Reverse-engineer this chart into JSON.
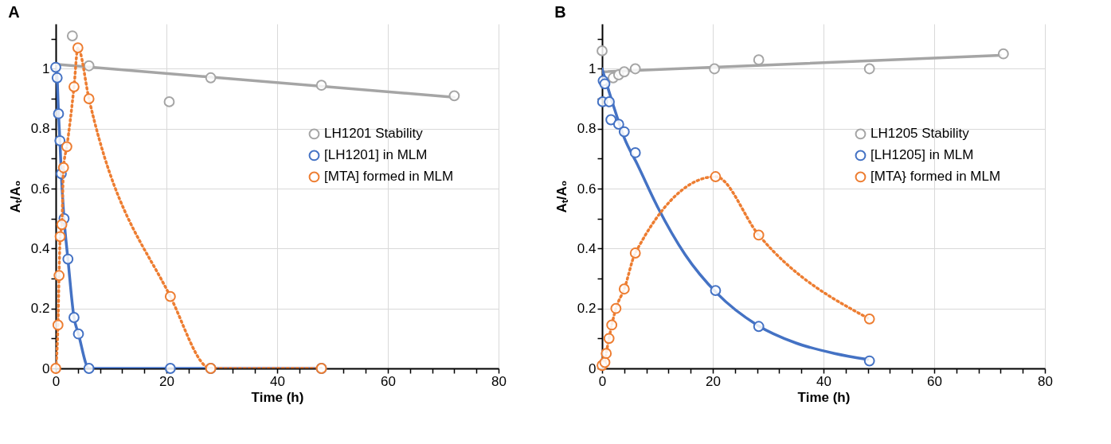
{
  "chart_data": [
    {
      "type": "line",
      "title": "A",
      "xlabel": "Time (h)",
      "ylabel": "Aₜ/A₀",
      "xlim": [
        0,
        80
      ],
      "ylim": [
        0,
        1.15
      ],
      "xticks": [
        0,
        {
          "value": 4,
          "label": null
        },
        {
          "value": 8,
          "label": null
        },
        {
          "value": 12,
          "label": null
        },
        {
          "value": 16,
          "label": null
        },
        20,
        {
          "value": 24,
          "label": null
        },
        {
          "value": 28,
          "label": null
        },
        {
          "value": 32,
          "label": null
        },
        {
          "value": 36,
          "label": null
        },
        40,
        {
          "value": 44,
          "label": null
        },
        {
          "value": 48,
          "label": null
        },
        {
          "value": 52,
          "label": null
        },
        {
          "value": 56,
          "label": null
        },
        60,
        {
          "value": 64,
          "label": null
        },
        {
          "value": 68,
          "label": null
        },
        {
          "value": 72,
          "label": null
        },
        {
          "value": 76,
          "label": null
        },
        80
      ],
      "yticks": [
        0,
        {
          "value": 0.1,
          "label": null
        },
        0.2,
        {
          "value": 0.3,
          "label": null
        },
        0.4,
        {
          "value": 0.5,
          "label": null
        },
        0.6,
        {
          "value": 0.7,
          "label": null
        },
        0.8,
        {
          "value": 0.9,
          "label": null
        },
        1,
        {
          "value": 1.1,
          "label": null
        }
      ],
      "grid": true,
      "legend": "right",
      "series": [
        {
          "type": "line",
          "color": "#a5a5a5",
          "line_style": "solid",
          "marker": "none",
          "x": [
            0,
            72
          ],
          "values": [
            1.015,
            0.905
          ]
        },
        {
          "type": "scatter",
          "name": "LH1201 Stability",
          "color": "#a5a5a5",
          "marker": "circle",
          "x": [
            3,
            4,
            6,
            20.5,
            28,
            48,
            72
          ],
          "values": [
            1.11,
            null,
            1.01,
            0.89,
            0.97,
            0.945,
            0.91
          ]
        },
        {
          "type": "line",
          "name": "[LH1201] in MLM",
          "color": "#4472c4",
          "line_style": "solid",
          "marker": "circle",
          "x": [
            0,
            0.25,
            0.5,
            0.75,
            1,
            1.5,
            2.2,
            3.3,
            4.1,
            6,
            20.7,
            28,
            48
          ],
          "values": [
            1.005,
            0.97,
            0.85,
            0.76,
            0.65,
            0.5,
            0.365,
            0.17,
            0.115,
            0,
            0,
            0,
            0
          ]
        },
        {
          "type": "line",
          "name": "[MTA] formed in MLM",
          "color": "#ed7d31",
          "line_style": "dotted",
          "marker": "circle",
          "x": [
            0,
            0.4,
            0.6,
            0.8,
            1.1,
            1.4,
            2,
            3.3,
            4,
            6,
            20.7,
            28,
            48
          ],
          "values": [
            0,
            0.145,
            0.31,
            0.44,
            0.48,
            0.67,
            0.74,
            0.94,
            1.07,
            0.9,
            0.24,
            0,
            0
          ]
        }
      ]
    },
    {
      "type": "line",
      "title": "B",
      "xlabel": "Time (h)",
      "ylabel": "Aₜ/A₀",
      "xlim": [
        0,
        80
      ],
      "ylim": [
        0,
        1.15
      ],
      "xticks": [
        0,
        {
          "value": 4,
          "label": null
        },
        {
          "value": 8,
          "label": null
        },
        {
          "value": 12,
          "label": null
        },
        {
          "value": 16,
          "label": null
        },
        20,
        {
          "value": 24,
          "label": null
        },
        {
          "value": 28,
          "label": null
        },
        {
          "value": 32,
          "label": null
        },
        {
          "value": 36,
          "label": null
        },
        40,
        {
          "value": 44,
          "label": null
        },
        {
          "value": 48,
          "label": null
        },
        {
          "value": 52,
          "label": null
        },
        {
          "value": 56,
          "label": null
        },
        60,
        {
          "value": 64,
          "label": null
        },
        {
          "value": 68,
          "label": null
        },
        {
          "value": 72,
          "label": null
        },
        {
          "value": 76,
          "label": null
        },
        80
      ],
      "yticks": [
        0,
        {
          "value": 0.1,
          "label": null
        },
        0.2,
        {
          "value": 0.3,
          "label": null
        },
        0.4,
        {
          "value": 0.5,
          "label": null
        },
        0.6,
        {
          "value": 0.7,
          "label": null
        },
        0.8,
        {
          "value": 0.9,
          "label": null
        },
        1,
        {
          "value": 1.1,
          "label": null
        }
      ],
      "grid": true,
      "legend": "right",
      "series": [
        {
          "type": "line",
          "color": "#a5a5a5",
          "line_style": "solid",
          "marker": "none",
          "x": [
            0,
            72
          ],
          "values": [
            0.99,
            1.045
          ]
        },
        {
          "type": "scatter",
          "name": "LH1205 Stability",
          "color": "#a5a5a5",
          "marker": "circle",
          "x": [
            0,
            2,
            3,
            4,
            6,
            20.3,
            28.3,
            48.3,
            72.5
          ],
          "values": [
            1.06,
            0.97,
            0.98,
            0.99,
            1.0,
            1.0,
            1.03,
            1.0,
            1.05
          ]
        },
        {
          "type": "line",
          "color": "#4472c4",
          "line_style": "solid",
          "marker": "none",
          "x": [
            0,
            2,
            4,
            6.4,
            10,
            15,
            20.8,
            28,
            35,
            42,
            48
          ],
          "values": [
            1.0,
            0.88,
            0.77,
            0.68,
            0.54,
            0.38,
            0.25,
            0.145,
            0.085,
            0.05,
            0.03
          ]
        },
        {
          "type": "scatter",
          "name": "[LH1205] in MLM",
          "color": "#4472c4",
          "marker": "circle",
          "x": [
            0.2,
            0.5,
            0.1,
            1.3,
            1.6,
            3,
            4,
            6,
            20.5,
            28.3,
            48.3
          ],
          "values": [
            0.96,
            0.95,
            0.89,
            0.89,
            0.83,
            0.815,
            0.79,
            0.72,
            0.26,
            0.14,
            0.025
          ]
        },
        {
          "type": "line",
          "name": "[MTA} formed in MLM",
          "color": "#ed7d31",
          "line_style": "dotted",
          "marker": "circle",
          "x": [
            0,
            0.5,
            0.75,
            1.25,
            1.75,
            2.5,
            4,
            6,
            20.5,
            28.3,
            48.3
          ],
          "values": [
            0.01,
            0.02,
            0.05,
            0.1,
            0.145,
            0.2,
            0.265,
            0.385,
            0.64,
            0.445,
            0.165
          ]
        }
      ]
    }
  ]
}
